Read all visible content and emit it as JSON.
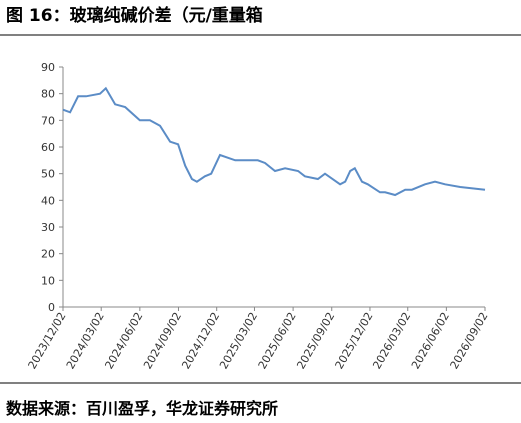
{
  "chart_data": {
    "type": "line",
    "title": "图 16：玻璃纯碱价差（元/重量箱",
    "source": "数据来源：百川盈孚，华龙证券研究所",
    "x": [
      "2023/12/02",
      "2023/12/19",
      "2024/01/07",
      "2024/01/26",
      "2024/02/28",
      "2024/03/13",
      "2024/04/04",
      "2024/04/28",
      "2024/06/02",
      "2024/06/26",
      "2024/07/20",
      "2024/08/13",
      "2024/09/01",
      "2024/09/18",
      "2024/10/04",
      "2024/10/16",
      "2024/11/04",
      "2024/11/19",
      "2024/12/10",
      "2025/01/15",
      "2025/02/19",
      "2025/03/10",
      "2025/03/27",
      "2025/04/20",
      "2025/05/14",
      "2025/06/14",
      "2025/06/30",
      "2025/07/31",
      "2025/08/17",
      "2025/09/22",
      "2025/10/04",
      "2025/10/16",
      "2025/10/27",
      "2025/11/13",
      "2025/11/27",
      "2025/12/26",
      "2026/01/07",
      "2026/01/31",
      "2026/02/24",
      "2026/03/12",
      "2026/04/12",
      "2026/05/06",
      "2026/05/30",
      "2026/07/05",
      "2026/09/02"
    ],
    "series": [
      {
        "color": "#5b8cc6",
        "values": [
          74,
          73,
          79,
          79,
          80,
          82,
          76,
          75,
          70,
          70,
          68,
          62,
          61,
          53,
          48,
          47,
          49,
          50,
          57,
          55,
          55,
          55,
          54,
          51,
          52,
          51,
          49,
          48,
          50,
          46,
          47,
          51,
          52,
          47,
          46,
          43,
          43,
          42,
          44,
          44,
          46,
          47,
          46,
          45,
          44
        ]
      }
    ],
    "xlim": [
      "2023/12/02",
      "2026/09/02"
    ],
    "xticks": [
      "2023/12/02",
      "2024/03/02",
      "2024/06/02",
      "2024/09/02",
      "2024/12/02",
      "2025/03/02",
      "2025/06/02",
      "2025/09/02",
      "2025/12/02",
      "2026/03/02",
      "2026/06/02",
      "2026/09/02"
    ],
    "ylim": [
      0,
      90
    ],
    "yticks": [
      0,
      10,
      20,
      30,
      40,
      50,
      60,
      70,
      80,
      90
    ]
  }
}
